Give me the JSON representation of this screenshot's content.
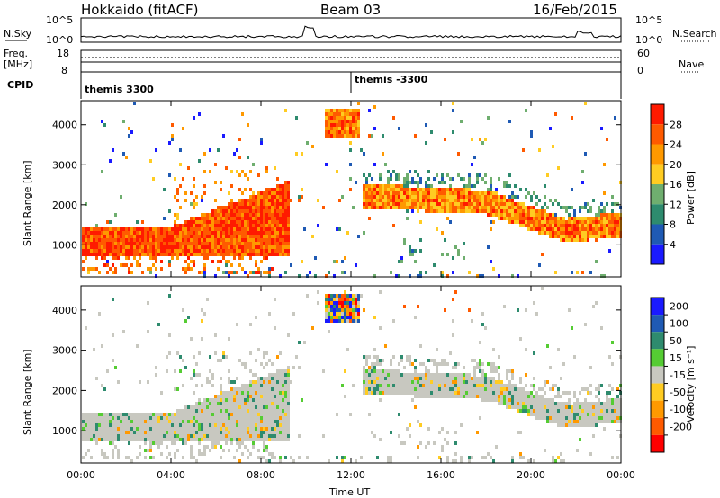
{
  "header": {
    "station": "Hokkaido (fitACF)",
    "beam": "Beam 03",
    "date": "16/Feb/2015"
  },
  "noise_panel": {
    "left_label": "N.Sky",
    "right_label": "N.Search",
    "left_ticks": [
      "10^5",
      "10^0"
    ],
    "right_ticks": [
      "10^5",
      "10^0"
    ]
  },
  "freq_panel": {
    "left_label_1": "Freq.",
    "left_label_2": "[MHz]",
    "left_ticks": [
      "18",
      "8"
    ],
    "right_label": "Nave",
    "right_ticks": [
      "60",
      "0"
    ]
  },
  "cpid_panel": {
    "label": "CPID",
    "modes": [
      {
        "name": "themis 3300",
        "start_hour": 0.0
      },
      {
        "name": "themis -3300",
        "start_hour": 12.0
      }
    ]
  },
  "chart_data": [
    {
      "type": "heatmap",
      "panel": "power",
      "ylabel": "Slant Range [km]",
      "xlabel": "Time UT",
      "colorbar_label": "Power [dB]",
      "x_ticks": [
        "00:00",
        "04:00",
        "08:00",
        "12:00",
        "16:00",
        "20:00",
        "00:00"
      ],
      "xlim_hours": [
        0,
        24
      ],
      "y_ticks": [
        1000,
        2000,
        3000,
        4000
      ],
      "ylim": [
        200,
        4600
      ],
      "colorbar_ticks": [
        4,
        8,
        12,
        16,
        20,
        24,
        28
      ],
      "colorbar_range": [
        0,
        32
      ],
      "colors": [
        "#1a1aff",
        "#1f5ab4",
        "#2e8b6e",
        "#6fae6f",
        "#ffcc22",
        "#ff9900",
        "#ff5a00",
        "#ff1a00"
      ]
    },
    {
      "type": "heatmap",
      "panel": "velocity",
      "ylabel": "Slant Range [km]",
      "xlabel": "Time UT",
      "colorbar_label": "Velocity [m s⁻¹]",
      "x_ticks": [
        "00:00",
        "04:00",
        "08:00",
        "12:00",
        "16:00",
        "20:00",
        "00:00"
      ],
      "xlim_hours": [
        0,
        24
      ],
      "y_ticks": [
        1000,
        2000,
        3000,
        4000
      ],
      "ylim": [
        200,
        4600
      ],
      "colorbar_ticks": [
        "200",
        "100",
        "50",
        "15",
        "-15",
        "-50",
        "-100",
        "-200"
      ],
      "colors": [
        "#1a1aff",
        "#1f5ab4",
        "#2e8b6e",
        "#55cc33",
        "#c8c8c0",
        "#ffcc22",
        "#ff9900",
        "#ff5a00",
        "#ff0000"
      ]
    }
  ]
}
